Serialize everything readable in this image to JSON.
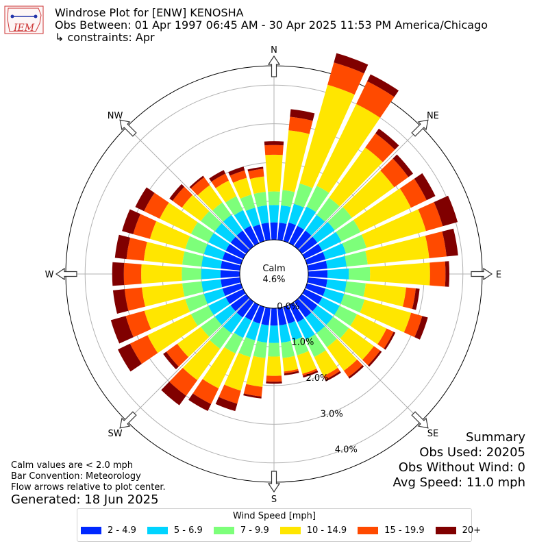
{
  "header": {
    "title": "Windrose Plot for [ENW] KENOSHA",
    "obs_between": "Obs Between: 01 Apr 1997 06:45 AM - 30 Apr 2025 11:53 PM America/Chicago",
    "constraints": "↳ constraints: Apr",
    "logo_text": "IEM"
  },
  "summary": {
    "title": "Summary",
    "obs_used": "Obs Used: 20205",
    "obs_without_wind": "Obs Without Wind: 0",
    "avg_speed": "Avg Speed: 11.0 mph"
  },
  "notes": {
    "calm_note": "Calm values are < 2.0 mph",
    "bar_convention": "Bar Convention: Meteorology",
    "flow_note": "Flow arrows relative to plot center.",
    "generated": "Generated: 18 Jun 2025"
  },
  "legend": {
    "title": "Wind Speed [mph]",
    "items": [
      {
        "label": "2 - 4.9",
        "color": "#0028ff"
      },
      {
        "label": "5 - 6.9",
        "color": "#00d4ff"
      },
      {
        "label": "7 - 9.9",
        "color": "#7dff7a"
      },
      {
        "label": "10 - 14.9",
        "color": "#ffe600"
      },
      {
        "label": "15 - 19.9",
        "color": "#ff4a00"
      },
      {
        "label": "20+",
        "color": "#800000"
      }
    ]
  },
  "chart_data": {
    "type": "windrose",
    "calm_label": "Calm",
    "calm_value": "4.6%",
    "radial_ticks": [
      0,
      1,
      2,
      3,
      4
    ],
    "radial_tick_labels": [
      "0.0%",
      "1.0%",
      "2.0%",
      "3.0%",
      "4.0%"
    ],
    "radial_max": 4.5,
    "directions": [
      "N",
      "NE",
      "E",
      "SE",
      "S",
      "SW",
      "W",
      "NW"
    ],
    "bins": [
      "2 - 4.9",
      "5 - 6.9",
      "7 - 9.9",
      "10 - 14.9",
      "15 - 19.9",
      "20+"
    ],
    "sectors": [
      {
        "dir_deg": 0,
        "values": [
          0.45,
          0.45,
          0.35,
          0.95,
          0.25,
          0.1
        ]
      },
      {
        "dir_deg": 10,
        "values": [
          0.45,
          0.45,
          0.4,
          1.55,
          0.35,
          0.2
        ]
      },
      {
        "dir_deg": 20,
        "values": [
          0.5,
          0.5,
          0.55,
          2.65,
          0.6,
          0.25
        ]
      },
      {
        "dir_deg": 30,
        "values": [
          0.5,
          0.55,
          0.6,
          2.35,
          0.65,
          0.2
        ]
      },
      {
        "dir_deg": 40,
        "values": [
          0.5,
          0.5,
          0.55,
          1.6,
          0.45,
          0.15
        ]
      },
      {
        "dir_deg": 50,
        "values": [
          0.5,
          0.55,
          0.55,
          1.35,
          0.45,
          0.15
        ]
      },
      {
        "dir_deg": 60,
        "values": [
          0.5,
          0.55,
          0.55,
          1.45,
          0.45,
          0.25
        ]
      },
      {
        "dir_deg": 70,
        "values": [
          0.5,
          0.55,
          0.55,
          1.6,
          0.45,
          0.4
        ]
      },
      {
        "dir_deg": 80,
        "values": [
          0.5,
          0.5,
          0.55,
          1.6,
          0.45,
          0.3
        ]
      },
      {
        "dir_deg": 90,
        "values": [
          0.5,
          0.55,
          0.55,
          1.55,
          0.4,
          0.1
        ]
      },
      {
        "dir_deg": 100,
        "values": [
          0.5,
          0.5,
          0.5,
          1.05,
          0.25,
          0.1
        ]
      },
      {
        "dir_deg": 110,
        "values": [
          0.5,
          0.5,
          0.55,
          1.25,
          0.3,
          0.15
        ]
      },
      {
        "dir_deg": 120,
        "values": [
          0.5,
          0.5,
          0.5,
          0.85,
          0.2,
          0.05
        ]
      },
      {
        "dir_deg": 130,
        "values": [
          0.5,
          0.5,
          0.5,
          0.8,
          0.2,
          0.05
        ]
      },
      {
        "dir_deg": 140,
        "values": [
          0.5,
          0.5,
          0.45,
          0.75,
          0.2,
          0.05
        ]
      },
      {
        "dir_deg": 150,
        "values": [
          0.5,
          0.5,
          0.5,
          0.55,
          0.1,
          0.05
        ]
      },
      {
        "dir_deg": 160,
        "values": [
          0.45,
          0.45,
          0.4,
          0.5,
          0.05,
          0.05
        ]
      },
      {
        "dir_deg": 170,
        "values": [
          0.45,
          0.45,
          0.4,
          0.35,
          0.05,
          0.05
        ]
      },
      {
        "dir_deg": 180,
        "values": [
          0.45,
          0.45,
          0.35,
          0.5,
          0.15,
          0.05
        ]
      },
      {
        "dir_deg": 190,
        "values": [
          0.45,
          0.45,
          0.4,
          0.75,
          0.25,
          0.05
        ]
      },
      {
        "dir_deg": 200,
        "values": [
          0.45,
          0.45,
          0.45,
          0.9,
          0.35,
          0.2
        ]
      },
      {
        "dir_deg": 210,
        "values": [
          0.45,
          0.5,
          0.45,
          1.0,
          0.45,
          0.2
        ]
      },
      {
        "dir_deg": 220,
        "values": [
          0.5,
          0.5,
          0.5,
          1.0,
          0.5,
          0.3
        ]
      },
      {
        "dir_deg": 230,
        "values": [
          0.5,
          0.5,
          0.45,
          0.75,
          0.35,
          0.1
        ]
      },
      {
        "dir_deg": 240,
        "values": [
          0.5,
          0.5,
          0.5,
          1.25,
          0.5,
          0.35
        ]
      },
      {
        "dir_deg": 250,
        "values": [
          0.5,
          0.5,
          0.5,
          1.1,
          0.5,
          0.4
        ]
      },
      {
        "dir_deg": 260,
        "values": [
          0.5,
          0.5,
          0.5,
          1.05,
          0.45,
          0.3
        ]
      },
      {
        "dir_deg": 270,
        "values": [
          0.5,
          0.5,
          0.5,
          1.05,
          0.45,
          0.3
        ]
      },
      {
        "dir_deg": 280,
        "values": [
          0.5,
          0.5,
          0.5,
          1.0,
          0.45,
          0.3
        ]
      },
      {
        "dir_deg": 290,
        "values": [
          0.5,
          0.5,
          0.5,
          0.95,
          0.45,
          0.3
        ]
      },
      {
        "dir_deg": 300,
        "values": [
          0.5,
          0.5,
          0.5,
          0.9,
          0.45,
          0.25
        ]
      },
      {
        "dir_deg": 310,
        "values": [
          0.5,
          0.5,
          0.45,
          0.6,
          0.3,
          0.1
        ]
      },
      {
        "dir_deg": 320,
        "values": [
          0.5,
          0.5,
          0.4,
          0.55,
          0.25,
          0.05
        ]
      },
      {
        "dir_deg": 330,
        "values": [
          0.5,
          0.45,
          0.4,
          0.45,
          0.2,
          0.1
        ]
      },
      {
        "dir_deg": 340,
        "values": [
          0.45,
          0.45,
          0.35,
          0.45,
          0.2,
          0.1
        ]
      },
      {
        "dir_deg": 350,
        "values": [
          0.45,
          0.45,
          0.35,
          0.4,
          0.2,
          0.05
        ]
      }
    ]
  }
}
